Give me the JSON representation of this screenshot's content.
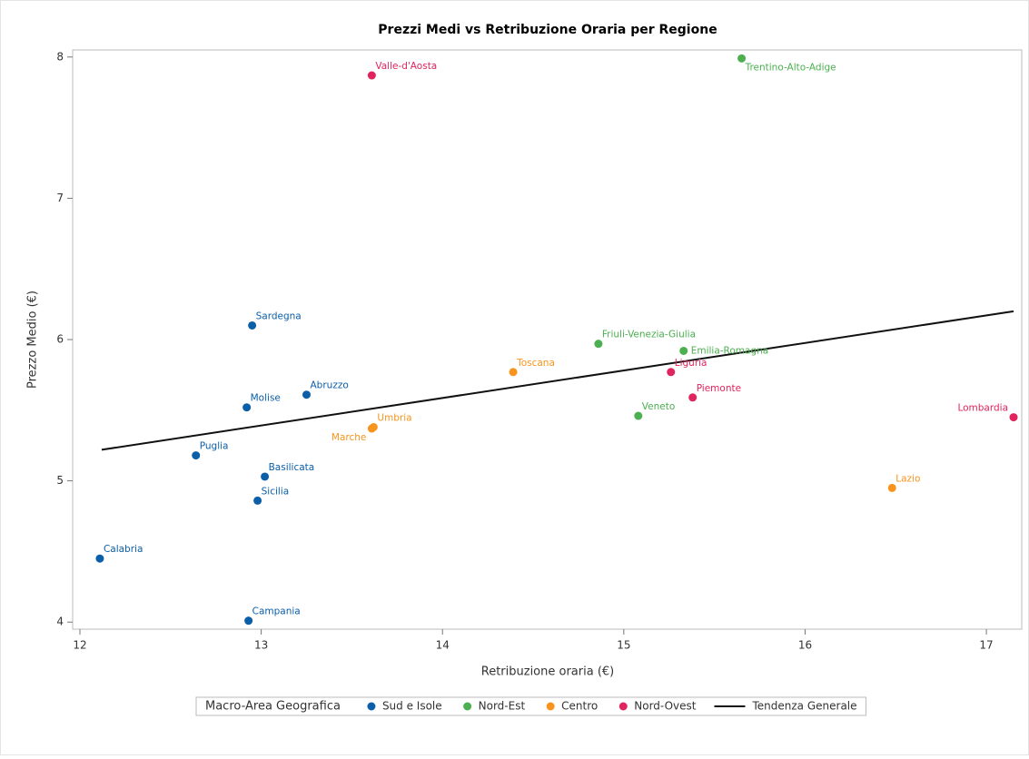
{
  "chart_data": {
    "type": "scatter",
    "title": "Prezzi Medi vs Retribuzione Oraria per Regione",
    "x_label": "Retribuzione oraria (€)",
    "y_label": "Prezzo Medio (€)",
    "xlim": [
      11.96,
      17.195
    ],
    "ylim": [
      3.95,
      8.05
    ],
    "xticks": [
      12,
      13,
      14,
      15,
      16,
      17
    ],
    "yticks": [
      4,
      5,
      6,
      7,
      8
    ],
    "legend_title": "Macro-Area Geografica",
    "series": [
      {
        "name": "Sud e Isole",
        "color": "#0b5ea8",
        "labels": [
          "Sardegna",
          "Abruzzo",
          "Molise",
          "Puglia",
          "Basilicata",
          "Sicilia",
          "Calabria",
          "Campania"
        ],
        "x": [
          12.95,
          13.25,
          12.92,
          12.64,
          13.02,
          12.98,
          12.11,
          12.93
        ],
        "y": [
          6.1,
          5.61,
          5.52,
          5.18,
          5.03,
          4.86,
          4.45,
          4.01
        ]
      },
      {
        "name": "Nord-Est",
        "color": "#4caf50",
        "labels": [
          "Trentino-Alto-Adige",
          "Friuli-Venezia-Giulia",
          "Emilia-Romagna",
          "Veneto"
        ],
        "x": [
          15.65,
          14.86,
          15.33,
          15.08
        ],
        "y": [
          7.99,
          5.97,
          5.92,
          5.46
        ]
      },
      {
        "name": "Centro",
        "color": "#f7941d",
        "labels": [
          "Toscana",
          "Umbria",
          "Marche",
          "Lazio"
        ],
        "x": [
          14.39,
          13.62,
          13.61,
          16.48
        ],
        "y": [
          5.77,
          5.38,
          5.37,
          4.95
        ]
      },
      {
        "name": "Nord-Ovest",
        "color": "#e0245e",
        "labels": [
          "Valle-d'Aosta",
          "Liguria",
          "Piemonte",
          "Lombardia"
        ],
        "x": [
          13.61,
          15.26,
          15.38,
          17.15
        ],
        "y": [
          7.87,
          5.77,
          5.59,
          5.45
        ]
      }
    ],
    "trend": {
      "name": "Tendenza Generale",
      "color": "#111111",
      "x": [
        12.12,
        17.15
      ],
      "y": [
        5.22,
        6.2
      ]
    }
  }
}
